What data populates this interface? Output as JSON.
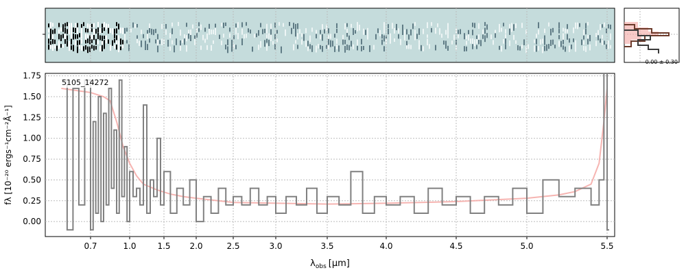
{
  "colors": {
    "spectrum": "#808080",
    "model": "#f4a7a3",
    "panel_bg": "#c5dcdc",
    "hist_dark": "#3a3a3a",
    "hist_brown": "#6b3a2a"
  },
  "image_panel": {
    "type": "heatmap",
    "description_icon": "2d-spectrum-image"
  },
  "histogram_panel": {
    "annotation": "-0.00 ± 0.30"
  },
  "chart_data": {
    "type": "line",
    "label": "5105_14272",
    "xlabel_main": "λ",
    "xlabel_sub": "obs",
    "xlabel_unit": "[μm]",
    "ylabel": "fλ [10⁻²⁰ ergs⁻¹cm⁻²Å⁻¹]",
    "x_ticks": [
      "0.7",
      "1.0",
      "1.5",
      "2.0",
      "2.5",
      "3.0",
      "3.5",
      "4.0",
      "4.5",
      "5.0",
      "5.5"
    ],
    "y_ticks": [
      "0.00",
      "0.25",
      "0.50",
      "0.75",
      "1.00",
      "1.25",
      "1.50",
      "1.75"
    ],
    "ylim": [
      -0.18,
      1.78
    ],
    "xlim": [
      0.55,
      5.55
    ],
    "x_scale": "nonlinear (roughly sqrt-like)",
    "grid": true,
    "series": [
      {
        "style": "data",
        "x": [
          0.6,
          0.62,
          0.64,
          0.66,
          0.68,
          0.7,
          0.72,
          0.74,
          0.76,
          0.78,
          0.8,
          0.82,
          0.84,
          0.86,
          0.88,
          0.9,
          0.92,
          0.94,
          0.96,
          0.98,
          1.0,
          1.05,
          1.1,
          1.15,
          1.2,
          1.25,
          1.3,
          1.35,
          1.4,
          1.45,
          1.5,
          1.6,
          1.7,
          1.8,
          1.9,
          2.0,
          2.1,
          2.2,
          2.3,
          2.4,
          2.5,
          2.6,
          2.7,
          2.8,
          2.9,
          3.0,
          3.1,
          3.2,
          3.3,
          3.4,
          3.5,
          3.6,
          3.7,
          3.8,
          3.9,
          4.0,
          4.1,
          4.2,
          4.3,
          4.4,
          4.5,
          4.6,
          4.7,
          4.8,
          4.9,
          5.0,
          5.1,
          5.2,
          5.3,
          5.4,
          5.45,
          5.48,
          5.5
        ],
        "y": [
          1.7,
          -0.1,
          1.6,
          0.2,
          1.7,
          -0.1,
          1.2,
          0.1,
          1.5,
          0.0,
          1.3,
          0.2,
          1.6,
          0.4,
          1.1,
          0.1,
          1.7,
          0.3,
          0.9,
          0.0,
          0.6,
          0.3,
          0.4,
          0.2,
          1.4,
          0.1,
          0.5,
          0.3,
          1.0,
          0.2,
          0.6,
          0.1,
          0.4,
          0.2,
          0.5,
          0.0,
          0.3,
          0.1,
          0.4,
          0.2,
          0.3,
          0.2,
          0.4,
          0.2,
          0.3,
          0.1,
          0.3,
          0.2,
          0.4,
          0.1,
          0.3,
          0.2,
          0.6,
          0.1,
          0.3,
          0.2,
          0.3,
          0.1,
          0.4,
          0.2,
          0.3,
          0.1,
          0.3,
          0.2,
          0.4,
          0.1,
          0.5,
          0.3,
          0.4,
          0.2,
          0.5,
          1.8,
          -0.1
        ]
      },
      {
        "style": "model",
        "x": [
          0.6,
          0.7,
          0.8,
          0.85,
          0.9,
          0.95,
          1.0,
          1.1,
          1.2,
          1.4,
          1.6,
          1.8,
          2.0,
          2.5,
          3.0,
          3.5,
          4.0,
          4.5,
          5.0,
          5.2,
          5.3,
          5.4,
          5.45,
          5.48,
          5.5
        ],
        "y": [
          1.6,
          1.55,
          1.5,
          1.45,
          1.2,
          0.9,
          0.7,
          0.55,
          0.45,
          0.38,
          0.33,
          0.3,
          0.28,
          0.23,
          0.22,
          0.21,
          0.22,
          0.24,
          0.28,
          0.32,
          0.36,
          0.45,
          0.7,
          1.2,
          1.6
        ]
      }
    ]
  }
}
